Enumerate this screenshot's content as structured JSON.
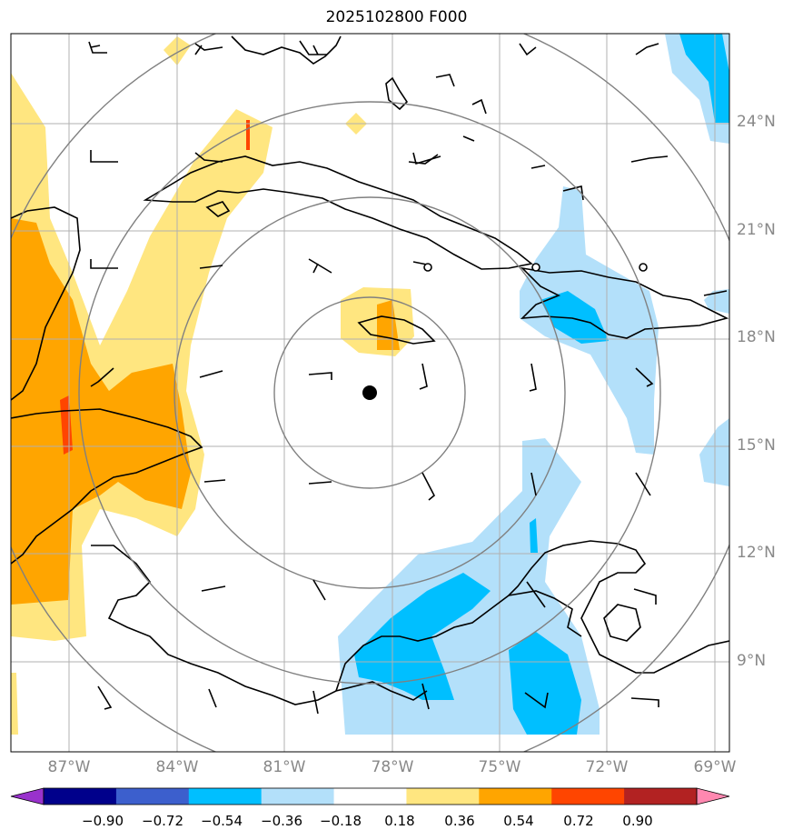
{
  "title": "2025102800 F000",
  "map": {
    "lat_labels": [
      "24°N",
      "21°N",
      "18°N",
      "15°N",
      "12°N",
      "9°N"
    ],
    "lon_labels": [
      "87°W",
      "84°W",
      "81°W",
      "78°W",
      "75°W",
      "72°W",
      "69°W"
    ],
    "center_marker": "storm-center-dot",
    "range_rings": 4,
    "contour_colors": {
      "neg_fill_light": "#b3e0fa",
      "neg_fill_mid": "#00bfff",
      "pos_fill_light": "#ffe680",
      "pos_fill_mid": "#ffa500",
      "pos_fill_high": "#ff4500",
      "grid": "#b0b0b0",
      "ring": "#808080"
    }
  },
  "colorbar": {
    "labels": [
      "−0.90",
      "−0.72",
      "−0.54",
      "−0.36",
      "−0.18",
      "0.18",
      "0.36",
      "0.54",
      "0.72",
      "0.90"
    ],
    "colors": [
      "#9932cc",
      "#00008b",
      "#3c5fcd",
      "#00bfff",
      "#b3e0fa",
      "#ffffff",
      "#ffe680",
      "#ffa500",
      "#ff4500",
      "#b22222",
      "#ff88b0"
    ]
  }
}
